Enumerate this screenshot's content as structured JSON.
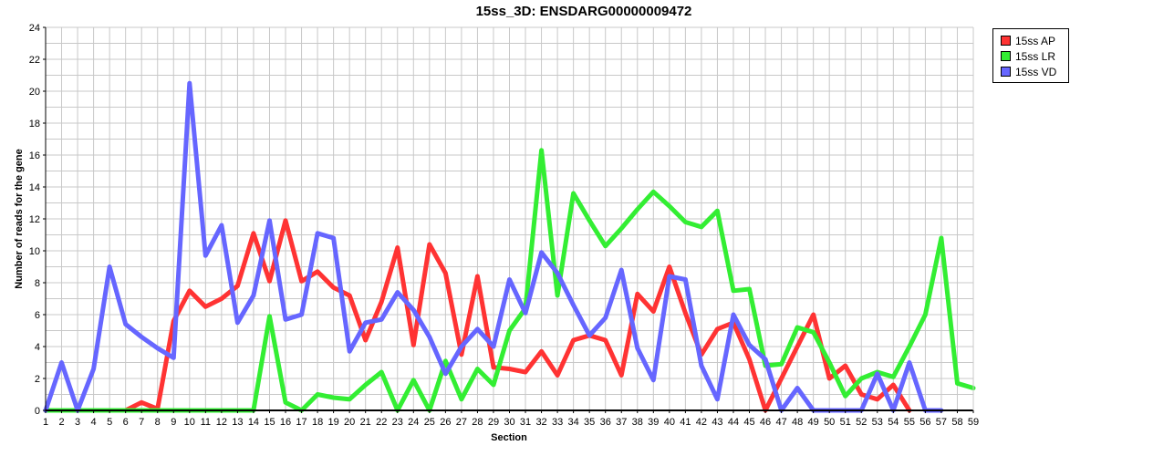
{
  "chart_data": {
    "type": "line",
    "title": "15ss_3D: ENSDARG00000009472",
    "xlabel": "Section",
    "ylabel": "Number of reads for the gene",
    "xlim": [
      1,
      59
    ],
    "ylim": [
      0,
      24
    ],
    "y_ticks": [
      0,
      2,
      4,
      6,
      8,
      10,
      12,
      14,
      16,
      18,
      20,
      22,
      24
    ],
    "x_ticks": [
      1,
      2,
      3,
      4,
      5,
      6,
      7,
      8,
      9,
      10,
      11,
      12,
      13,
      14,
      15,
      16,
      17,
      18,
      19,
      20,
      21,
      22,
      23,
      24,
      25,
      26,
      27,
      28,
      29,
      30,
      31,
      32,
      33,
      34,
      35,
      36,
      37,
      38,
      39,
      40,
      41,
      42,
      43,
      44,
      45,
      46,
      47,
      48,
      49,
      50,
      51,
      52,
      53,
      54,
      55,
      56,
      57,
      58,
      59
    ],
    "grid": true,
    "legend_position": "top-right-outside",
    "series": [
      {
        "name": "15ss AP",
        "color": "#ff3333",
        "x": [
          1,
          2,
          3,
          4,
          5,
          6,
          7,
          8,
          9,
          10,
          11,
          12,
          13,
          14,
          15,
          16,
          17,
          18,
          19,
          20,
          21,
          22,
          23,
          24,
          25,
          26,
          27,
          28,
          29,
          30,
          31,
          32,
          33,
          34,
          35,
          36,
          37,
          38,
          39,
          40,
          41,
          42,
          43,
          44,
          45,
          46,
          47,
          48,
          49,
          50,
          51,
          52,
          53,
          54,
          55
        ],
        "values": [
          0,
          0,
          0,
          0,
          0,
          0,
          0.5,
          0.1,
          5.6,
          7.5,
          6.5,
          7.0,
          7.8,
          11.1,
          8.1,
          11.9,
          8.1,
          8.7,
          7.7,
          7.2,
          4.4,
          6.8,
          10.2,
          4.1,
          10.4,
          8.6,
          3.5,
          8.4,
          2.7,
          2.6,
          2.4,
          3.7,
          2.2,
          4.4,
          4.7,
          4.4,
          2.2,
          7.3,
          6.2,
          9.0,
          6.1,
          3.5,
          5.1,
          5.5,
          3.2,
          0,
          2.0,
          4.0,
          6.0,
          2.0,
          2.8,
          1.0,
          0.7,
          1.6,
          0
        ]
      },
      {
        "name": "15ss LR",
        "color": "#33ee33",
        "x": [
          1,
          2,
          3,
          4,
          5,
          6,
          7,
          8,
          9,
          10,
          11,
          12,
          13,
          14,
          15,
          16,
          17,
          18,
          19,
          20,
          21,
          22,
          23,
          24,
          25,
          26,
          27,
          28,
          29,
          30,
          31,
          32,
          33,
          34,
          35,
          36,
          37,
          38,
          39,
          40,
          41,
          42,
          43,
          44,
          45,
          46,
          47,
          48,
          49,
          50,
          51,
          52,
          53,
          54,
          55,
          56,
          57,
          58,
          59
        ],
        "values": [
          0,
          0,
          0,
          0,
          0,
          0,
          0,
          0,
          0,
          0,
          0,
          0,
          0,
          0,
          5.9,
          0.5,
          0,
          1.0,
          0.8,
          0.7,
          1.6,
          2.4,
          0,
          1.9,
          0,
          3.1,
          0.7,
          2.6,
          1.6,
          5.0,
          6.4,
          16.3,
          7.2,
          13.6,
          11.9,
          10.3,
          11.4,
          12.6,
          13.7,
          12.8,
          11.8,
          11.5,
          12.5,
          7.5,
          7.6,
          2.8,
          2.9,
          5.2,
          4.9,
          3.0,
          0.9,
          2.0,
          2.4,
          2.1,
          4.0,
          6.0,
          10.8,
          1.7,
          1.4
        ]
      },
      {
        "name": "15ss VD",
        "color": "#6666ff",
        "x": [
          1,
          2,
          3,
          4,
          5,
          6,
          7,
          8,
          9,
          10,
          11,
          12,
          13,
          14,
          15,
          16,
          17,
          18,
          19,
          20,
          21,
          22,
          23,
          24,
          25,
          26,
          27,
          28,
          29,
          30,
          31,
          32,
          33,
          34,
          35,
          36,
          37,
          38,
          39,
          40,
          41,
          42,
          43,
          44,
          45,
          46,
          47,
          48,
          49,
          50,
          51,
          52,
          53,
          54,
          55,
          56,
          57
        ],
        "values": [
          0,
          3.0,
          0,
          2.6,
          9.0,
          5.4,
          4.6,
          3.9,
          3.3,
          20.5,
          9.7,
          11.6,
          5.5,
          7.2,
          11.9,
          5.7,
          6.0,
          11.1,
          10.8,
          3.7,
          5.5,
          5.7,
          7.4,
          6.3,
          4.6,
          2.3,
          4.0,
          5.1,
          4.0,
          8.2,
          6.1,
          9.9,
          8.6,
          6.6,
          4.7,
          5.8,
          8.8,
          3.9,
          1.9,
          8.4,
          8.2,
          2.8,
          0.7,
          6.0,
          4.1,
          3.2,
          0,
          1.4,
          0,
          0,
          0,
          0,
          2.3,
          0,
          3.0,
          0,
          0
        ]
      }
    ]
  }
}
